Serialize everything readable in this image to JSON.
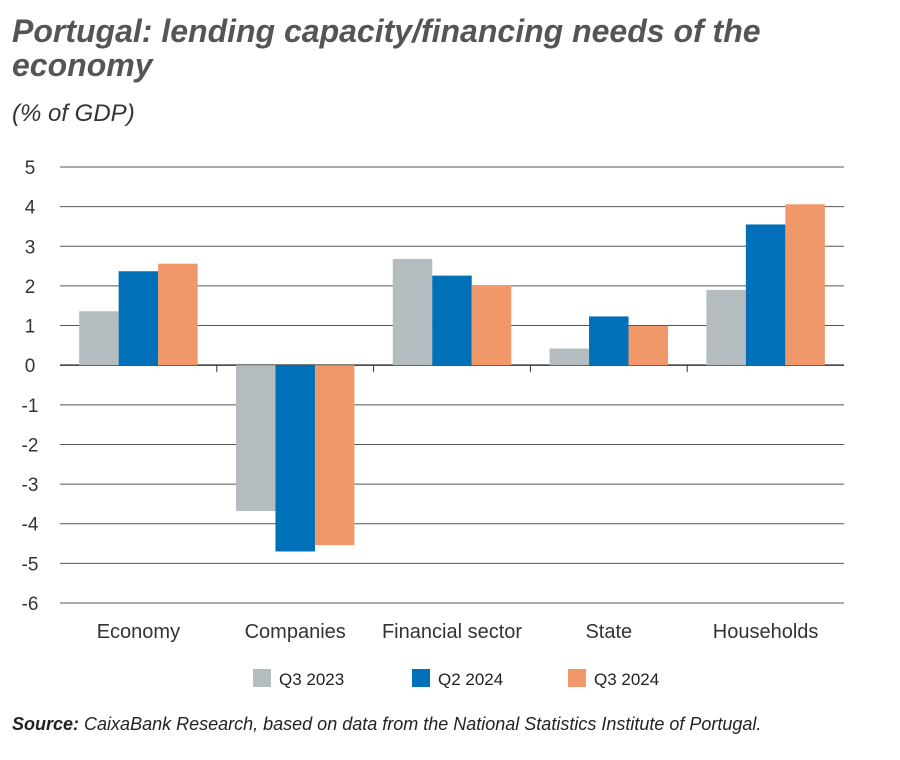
{
  "title": "Portugal: lending capacity/financing needs of the economy",
  "subtitle": "(% of GDP)",
  "source_label": "Source:",
  "source_text": "CaixaBank Research, based on data from the National Statistics Institute of Portugal.",
  "chart_data": {
    "type": "bar",
    "title": "Portugal: lending capacity/financing needs of the economy",
    "ylabel": "(% of GDP)",
    "categories": [
      "Economy",
      "Companies",
      "Financial sector",
      "State",
      "Households"
    ],
    "series": [
      {
        "name": "Q3 2023",
        "color": "#b5bcc0",
        "values": [
          1.36,
          -3.68,
          2.68,
          0.42,
          1.9
        ]
      },
      {
        "name": "Q2 2024",
        "color": "#0070b8",
        "values": [
          2.37,
          -4.7,
          2.26,
          1.23,
          3.55
        ]
      },
      {
        "name": "Q3 2024",
        "color": "#f0986a",
        "values": [
          2.56,
          -4.54,
          2.02,
          0.99,
          4.06
        ]
      }
    ],
    "ylim": [
      -6,
      5
    ],
    "yticks": [
      5,
      4,
      3,
      2,
      1,
      0,
      -1,
      -2,
      -3,
      -4,
      -5,
      -6
    ],
    "grid": true,
    "legend": "bottom"
  }
}
